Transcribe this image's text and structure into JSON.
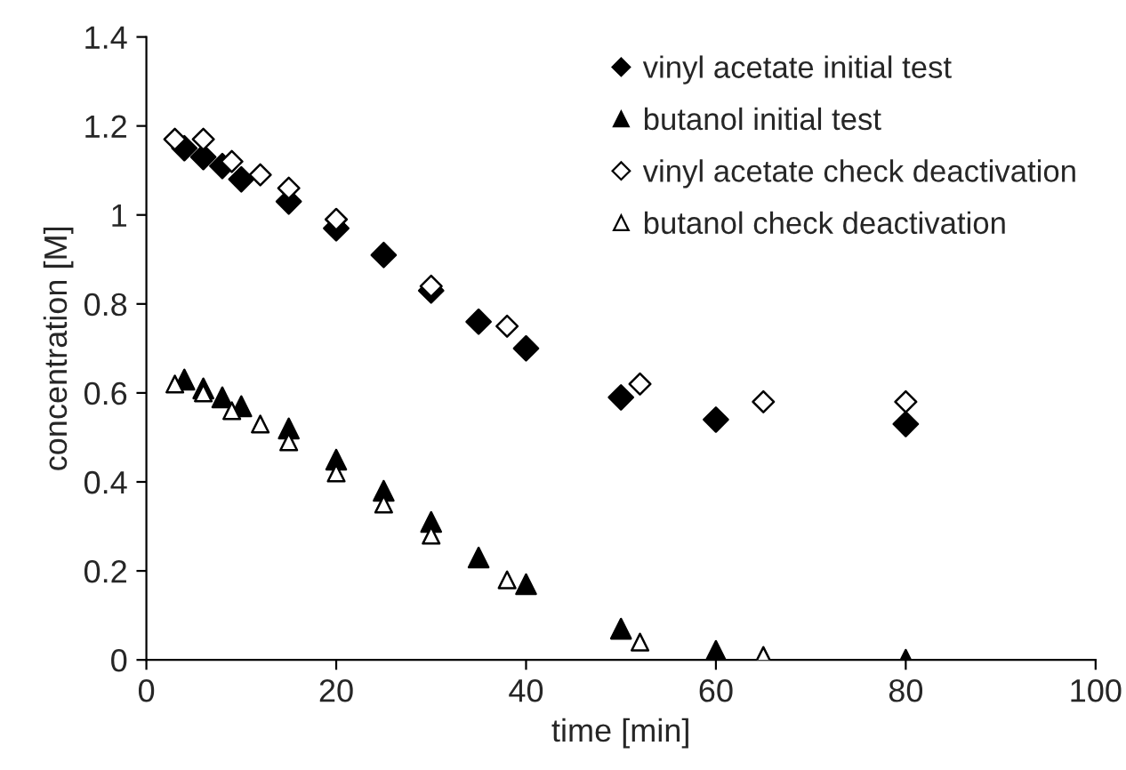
{
  "chart_data": {
    "type": "scatter",
    "xlabel": "time [min]",
    "ylabel": "concentration [M]",
    "xlim": [
      0,
      100
    ],
    "xticks": [
      0,
      20,
      40,
      60,
      80,
      100
    ],
    "ylim": [
      0,
      1.4
    ],
    "yticks": [
      0,
      0.2,
      0.4,
      0.6,
      0.8,
      1,
      1.2,
      1.4
    ],
    "grid": false,
    "legend": "top right",
    "series": [
      {
        "name": "vinyl acetate initial test",
        "marker": "diamond",
        "color": "#000000",
        "x": [
          4,
          6,
          8,
          10,
          15,
          20,
          25,
          30,
          35,
          40,
          50,
          60,
          80
        ],
        "values": [
          1.15,
          1.13,
          1.11,
          1.08,
          1.03,
          0.97,
          0.91,
          0.83,
          0.76,
          0.7,
          0.59,
          0.54,
          0.53
        ]
      },
      {
        "name": "butanol initial test",
        "marker": "triangle",
        "color": "#000000",
        "x": [
          4,
          6,
          8,
          10,
          15,
          20,
          25,
          30,
          35,
          40,
          50,
          60,
          80
        ],
        "values": [
          0.63,
          0.61,
          0.59,
          0.57,
          0.52,
          0.45,
          0.38,
          0.31,
          0.23,
          0.17,
          0.07,
          0.02,
          0.0
        ]
      },
      {
        "name": "vinyl acetate check deactivation",
        "marker": "diamond",
        "color": "#ffffff",
        "x": [
          3,
          6,
          9,
          12,
          15,
          20,
          30,
          38,
          52,
          65,
          80
        ],
        "values": [
          1.17,
          1.17,
          1.12,
          1.09,
          1.06,
          0.99,
          0.84,
          0.75,
          0.62,
          0.58,
          0.58
        ]
      },
      {
        "name": "butanol check deactivation",
        "marker": "triangle",
        "color": "#ffffff",
        "x": [
          3,
          6,
          9,
          12,
          15,
          20,
          25,
          30,
          38,
          52,
          65
        ],
        "values": [
          0.62,
          0.6,
          0.56,
          0.53,
          0.49,
          0.42,
          0.35,
          0.28,
          0.18,
          0.04,
          0.01
        ]
      }
    ]
  }
}
